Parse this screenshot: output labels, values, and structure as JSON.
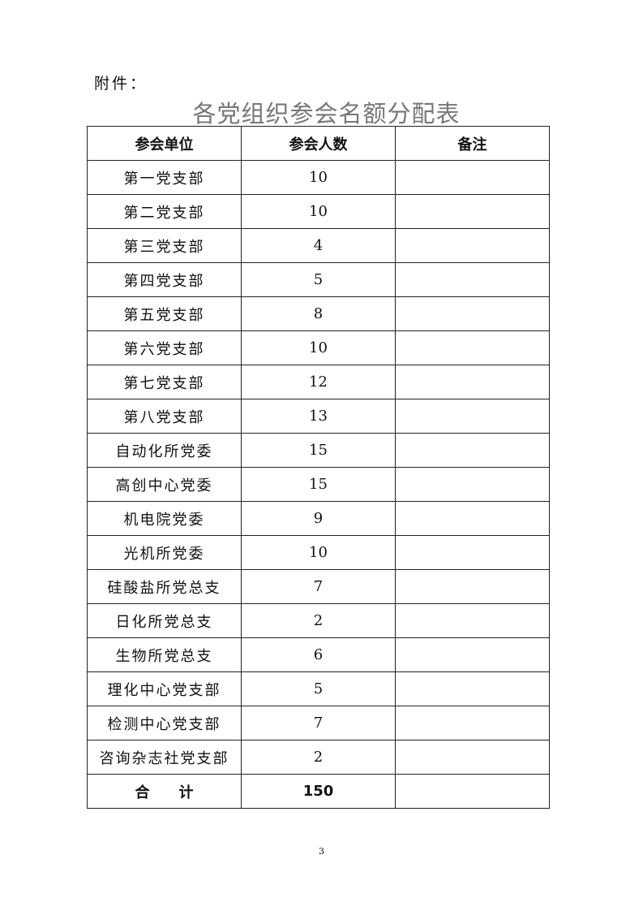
{
  "attachment_label": "附件：",
  "title": "各党组织参会名额分配表",
  "table": {
    "headers": [
      "参会单位",
      "参会人数",
      "备注"
    ],
    "rows": [
      {
        "unit": "第一党支部",
        "count": "10",
        "note": ""
      },
      {
        "unit": "第二党支部",
        "count": "10",
        "note": ""
      },
      {
        "unit": "第三党支部",
        "count": "4",
        "note": ""
      },
      {
        "unit": "第四党支部",
        "count": "5",
        "note": ""
      },
      {
        "unit": "第五党支部",
        "count": "8",
        "note": ""
      },
      {
        "unit": "第六党支部",
        "count": "10",
        "note": ""
      },
      {
        "unit": "第七党支部",
        "count": "12",
        "note": ""
      },
      {
        "unit": "第八党支部",
        "count": "13",
        "note": ""
      },
      {
        "unit": "自动化所党委",
        "count": "15",
        "note": ""
      },
      {
        "unit": "高创中心党委",
        "count": "15",
        "note": ""
      },
      {
        "unit": "机电院党委",
        "count": "9",
        "note": ""
      },
      {
        "unit": "光机所党委",
        "count": "10",
        "note": ""
      },
      {
        "unit": "硅酸盐所党总支",
        "count": "7",
        "note": ""
      },
      {
        "unit": "日化所党总支",
        "count": "2",
        "note": ""
      },
      {
        "unit": "生物所党总支",
        "count": "6",
        "note": ""
      },
      {
        "unit": "理化中心党支部",
        "count": "5",
        "note": ""
      },
      {
        "unit": "检测中心党支部",
        "count": "7",
        "note": ""
      },
      {
        "unit": "咨询杂志社党支部",
        "count": "2",
        "note": ""
      }
    ],
    "total": {
      "label": "合　　计",
      "count": "150",
      "note": ""
    }
  },
  "page_number": "3"
}
